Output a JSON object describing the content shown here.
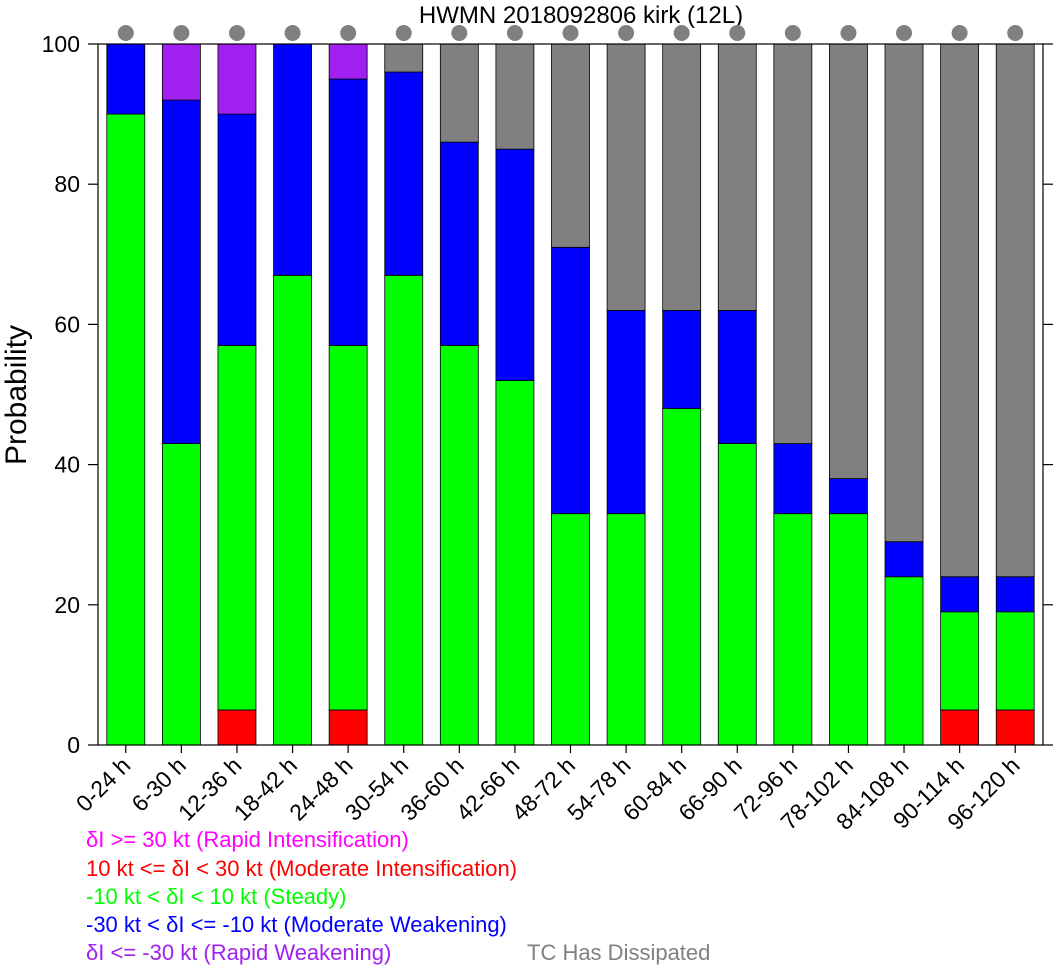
{
  "chart_data": {
    "type": "bar",
    "stacked": true,
    "title": "HWMN 2018092806 kirk (12L)",
    "xlabel": "",
    "ylabel": "Probability",
    "ylim": [
      0,
      100
    ],
    "yticks": [
      0,
      20,
      40,
      60,
      80,
      100
    ],
    "grid": false,
    "categories": [
      "0-24 h",
      "6-30 h",
      "12-36 h",
      "18-42 h",
      "24-48 h",
      "30-54 h",
      "36-60 h",
      "42-66 h",
      "48-72 h",
      "54-78 h",
      "60-84 h",
      "66-90 h",
      "72-96 h",
      "78-102 h",
      "84-108 h",
      "90-114 h",
      "96-120 h"
    ],
    "series": [
      {
        "name": "10 kt <= δI < 30 kt (Moderate Intensification)",
        "color": "#ff0000",
        "values": [
          0,
          0,
          5,
          0,
          5,
          0,
          0,
          0,
          0,
          0,
          0,
          0,
          0,
          0,
          0,
          5,
          5
        ]
      },
      {
        "name": "-10 kt < δI < 10 kt (Steady)",
        "color": "#00ff00",
        "values": [
          90,
          43,
          52,
          67,
          52,
          67,
          57,
          52,
          33,
          33,
          48,
          43,
          33,
          33,
          24,
          14,
          14
        ]
      },
      {
        "name": "-30 kt < δI <= -10 kt (Moderate Weakening)",
        "color": "#0000ff",
        "values": [
          10,
          49,
          33,
          33,
          38,
          29,
          29,
          33,
          38,
          29,
          14,
          19,
          10,
          5,
          5,
          5,
          5
        ]
      },
      {
        "name": "δI >= 30 kt (Rapid Intensification)",
        "color": "#ff00ff",
        "values": [
          0,
          0,
          0,
          0,
          0,
          0,
          0,
          0,
          0,
          0,
          0,
          0,
          0,
          0,
          0,
          0,
          0
        ]
      },
      {
        "name": "δI <= -30 kt (Rapid Weakening)",
        "color": "#a020f0",
        "values": [
          0,
          8,
          10,
          0,
          5,
          0,
          0,
          0,
          0,
          0,
          0,
          0,
          0,
          0,
          0,
          0,
          0
        ]
      },
      {
        "name": "TC Has Dissipated",
        "color": "#808080",
        "values": [
          0,
          0,
          0,
          0,
          0,
          4,
          14,
          15,
          29,
          38,
          38,
          38,
          57,
          62,
          71,
          76,
          76
        ]
      }
    ],
    "markers_top": {
      "color": "#808080"
    }
  },
  "legend": [
    {
      "text": "δI >= 30 kt (Rapid Intensification)",
      "color": "#ff00ff"
    },
    {
      "text": "10 kt <= δI < 30 kt (Moderate Intensification)",
      "color": "#ff0000"
    },
    {
      "text": "-10 kt < δI < 10 kt (Steady)",
      "color": "#00ff00"
    },
    {
      "text": "-30 kt < δI <= -10 kt (Moderate Weakening)",
      "color": "#0000ff"
    },
    {
      "text": "δI <= -30 kt (Rapid Weakening)",
      "color": "#a020f0"
    },
    {
      "text": "TC Has Dissipated",
      "color": "#808080"
    }
  ]
}
